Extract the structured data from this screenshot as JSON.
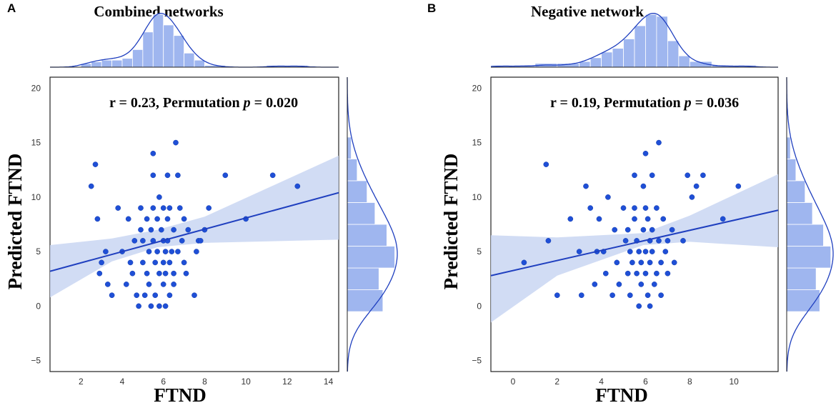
{
  "chart_data": [
    {
      "panel": "A",
      "type": "scatter",
      "title": "Combined networks",
      "xlabel": "FTND",
      "ylabel": "Predicted FTND",
      "xlim": [
        0.5,
        14.5
      ],
      "ylim": [
        -6,
        21
      ],
      "xticks": [
        2,
        4,
        6,
        8,
        10,
        12,
        14
      ],
      "yticks": [
        -5,
        0,
        5,
        10,
        15,
        20
      ],
      "annotation": {
        "prefix": "r = 0.23, Permutation ",
        "p": "p",
        "suffix": " = 0.020"
      },
      "regression": {
        "x": [
          0.5,
          14.5
        ],
        "y": [
          3.2,
          10.4
        ]
      },
      "ci_band": {
        "x": [
          0.5,
          3.5,
          5.7,
          8.0,
          14.5
        ],
        "lower": [
          0.8,
          4.1,
          5.4,
          5.8,
          6.1
        ],
        "upper": [
          5.6,
          6.2,
          7.0,
          8.2,
          13.8
        ]
      },
      "points": [
        [
          2.5,
          11
        ],
        [
          2.7,
          13
        ],
        [
          2.8,
          8
        ],
        [
          2.9,
          3
        ],
        [
          3.0,
          4
        ],
        [
          3.2,
          5
        ],
        [
          3.3,
          2
        ],
        [
          3.5,
          1
        ],
        [
          3.8,
          9
        ],
        [
          4.0,
          5
        ],
        [
          4.2,
          2
        ],
        [
          4.3,
          8
        ],
        [
          4.4,
          4
        ],
        [
          4.5,
          3
        ],
        [
          4.6,
          6
        ],
        [
          4.7,
          1
        ],
        [
          4.8,
          0
        ],
        [
          4.9,
          7
        ],
        [
          4.9,
          9
        ],
        [
          5.0,
          6
        ],
        [
          5.0,
          4
        ],
        [
          5.1,
          1
        ],
        [
          5.2,
          3
        ],
        [
          5.2,
          8
        ],
        [
          5.3,
          5
        ],
        [
          5.3,
          2
        ],
        [
          5.4,
          7
        ],
        [
          5.4,
          0
        ],
        [
          5.5,
          14
        ],
        [
          5.5,
          12
        ],
        [
          5.5,
          9
        ],
        [
          5.5,
          6
        ],
        [
          5.6,
          4
        ],
        [
          5.6,
          1
        ],
        [
          5.7,
          8
        ],
        [
          5.7,
          5
        ],
        [
          5.8,
          3
        ],
        [
          5.8,
          10
        ],
        [
          5.8,
          0
        ],
        [
          5.9,
          7
        ],
        [
          6.0,
          9
        ],
        [
          6.0,
          6
        ],
        [
          6.0,
          4
        ],
        [
          6.0,
          2
        ],
        [
          6.1,
          5
        ],
        [
          6.1,
          0
        ],
        [
          6.1,
          3
        ],
        [
          6.2,
          8
        ],
        [
          6.2,
          12
        ],
        [
          6.2,
          6
        ],
        [
          6.3,
          9
        ],
        [
          6.3,
          4
        ],
        [
          6.3,
          1
        ],
        [
          6.4,
          5
        ],
        [
          6.5,
          3
        ],
        [
          6.5,
          7
        ],
        [
          6.5,
          2
        ],
        [
          6.6,
          15
        ],
        [
          6.7,
          12
        ],
        [
          6.7,
          5
        ],
        [
          6.8,
          9
        ],
        [
          6.9,
          6
        ],
        [
          7.0,
          4
        ],
        [
          7.0,
          8
        ],
        [
          7.1,
          3
        ],
        [
          7.2,
          7
        ],
        [
          7.5,
          1
        ],
        [
          7.6,
          5
        ],
        [
          7.7,
          6
        ],
        [
          7.8,
          6
        ],
        [
          8.0,
          7
        ],
        [
          8.2,
          9
        ],
        [
          9.0,
          12
        ],
        [
          10.0,
          8
        ],
        [
          11.3,
          12
        ],
        [
          12.5,
          11
        ]
      ],
      "hist_x": {
        "edges": [
          2,
          2.5,
          3,
          3.5,
          4,
          4.5,
          5,
          5.5,
          6,
          6.5,
          7,
          7.5,
          8,
          9,
          10,
          11,
          12,
          13
        ],
        "counts": [
          2,
          3,
          4,
          4,
          5,
          10,
          20,
          30,
          24,
          18,
          8,
          4,
          1,
          0,
          0,
          1,
          1
        ]
      },
      "hist_y": {
        "edges": [
          -0.5,
          1.5,
          3.5,
          5.5,
          7.5,
          9.5,
          11.5,
          13.5,
          15.5
        ],
        "counts": [
          18,
          16,
          24,
          20,
          14,
          10,
          5,
          2
        ]
      }
    },
    {
      "panel": "B",
      "type": "scatter",
      "title": "Negative network",
      "xlabel": "FTND",
      "ylabel": "Predicted FTND",
      "xlim": [
        -1,
        12
      ],
      "ylim": [
        -6,
        21
      ],
      "xticks": [
        0,
        2,
        4,
        6,
        8,
        10
      ],
      "yticks": [
        -5,
        0,
        5,
        10,
        15,
        20
      ],
      "annotation": {
        "prefix": "r = 0.19, Permutation ",
        "p": "p",
        "suffix": " = 0.036"
      },
      "regression": {
        "x": [
          -1,
          12
        ],
        "y": [
          2.8,
          8.8
        ]
      },
      "ci_band": {
        "x": [
          -1,
          2.0,
          5.9,
          8.0,
          12
        ],
        "lower": [
          -1.5,
          2.8,
          5.6,
          5.9,
          5.4
        ],
        "upper": [
          6.5,
          6.3,
          6.7,
          8.3,
          12.1
        ]
      },
      "points": [
        [
          0.5,
          4
        ],
        [
          1.5,
          13
        ],
        [
          1.6,
          6
        ],
        [
          2.0,
          1
        ],
        [
          2.6,
          8
        ],
        [
          3.0,
          5
        ],
        [
          3.1,
          1
        ],
        [
          3.3,
          11
        ],
        [
          3.5,
          9
        ],
        [
          3.7,
          2
        ],
        [
          3.8,
          5
        ],
        [
          3.9,
          8
        ],
        [
          4.1,
          5
        ],
        [
          4.2,
          3
        ],
        [
          4.3,
          10
        ],
        [
          4.5,
          1
        ],
        [
          4.6,
          7
        ],
        [
          4.7,
          4
        ],
        [
          4.8,
          2
        ],
        [
          5.0,
          9
        ],
        [
          5.1,
          6
        ],
        [
          5.2,
          3
        ],
        [
          5.2,
          7
        ],
        [
          5.3,
          1
        ],
        [
          5.3,
          5
        ],
        [
          5.4,
          4
        ],
        [
          5.5,
          8
        ],
        [
          5.5,
          12
        ],
        [
          5.5,
          9
        ],
        [
          5.6,
          6
        ],
        [
          5.6,
          3
        ],
        [
          5.7,
          5
        ],
        [
          5.7,
          0
        ],
        [
          5.8,
          2
        ],
        [
          5.8,
          4
        ],
        [
          5.9,
          7
        ],
        [
          5.9,
          11
        ],
        [
          6.0,
          14
        ],
        [
          6.0,
          9
        ],
        [
          6.0,
          5
        ],
        [
          6.0,
          3
        ],
        [
          6.1,
          8
        ],
        [
          6.1,
          1
        ],
        [
          6.2,
          6
        ],
        [
          6.2,
          4
        ],
        [
          6.2,
          0
        ],
        [
          6.3,
          12
        ],
        [
          6.3,
          7
        ],
        [
          6.3,
          5
        ],
        [
          6.4,
          2
        ],
        [
          6.5,
          9
        ],
        [
          6.5,
          3
        ],
        [
          6.6,
          15
        ],
        [
          6.6,
          6
        ],
        [
          6.7,
          4
        ],
        [
          6.7,
          1
        ],
        [
          6.8,
          8
        ],
        [
          6.9,
          5
        ],
        [
          7.0,
          6
        ],
        [
          7.0,
          3
        ],
        [
          7.2,
          7
        ],
        [
          7.3,
          4
        ],
        [
          7.7,
          6
        ],
        [
          7.9,
          12
        ],
        [
          8.1,
          10
        ],
        [
          8.3,
          11
        ],
        [
          8.6,
          12
        ],
        [
          9.5,
          8
        ],
        [
          10.2,
          11
        ]
      ],
      "hist_x": {
        "edges": [
          -1,
          0,
          1,
          2,
          3,
          3.5,
          4,
          4.5,
          5,
          5.5,
          6,
          6.5,
          7,
          7.5,
          8,
          9,
          10,
          11
        ],
        "counts": [
          1,
          1,
          2,
          2,
          3,
          5,
          8,
          10,
          15,
          22,
          28,
          27,
          14,
          6,
          3,
          1,
          1
        ]
      },
      "hist_y": {
        "edges": [
          -0.5,
          1.5,
          3.5,
          5.5,
          7.5,
          9.5,
          11.5,
          13.5,
          15.5
        ],
        "counts": [
          18,
          16,
          24,
          20,
          14,
          10,
          5,
          2
        ]
      }
    }
  ]
}
